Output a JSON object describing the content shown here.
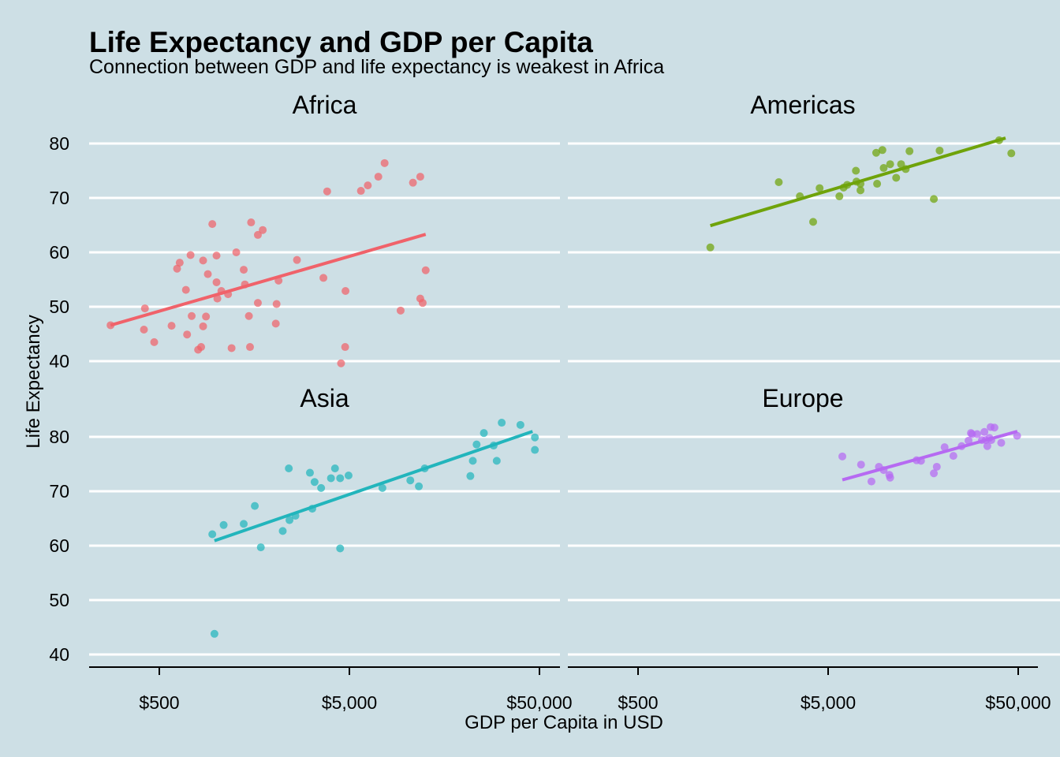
{
  "chart_data": {
    "type": "scatter",
    "title": "Life Expectancy and GDP per Capita",
    "subtitle": "Connection between GDP and life expectancy is weakest in Africa",
    "xlabel": "GDP per Capita in USD",
    "ylabel": "Life Expectancy",
    "x_scale": "log10",
    "x_ticks": [
      500,
      5000,
      50000
    ],
    "x_tick_labels": [
      "$500",
      "$5,000",
      "$50,000"
    ],
    "y_ticks": [
      40,
      50,
      60,
      70,
      80
    ],
    "y_tick_labels": [
      "40",
      "50",
      "60",
      "70",
      "80"
    ],
    "xlim": [
      200,
      65000
    ],
    "ylim": [
      38,
      83
    ],
    "grid": "horizontal-major",
    "legend": "none",
    "facets": [
      {
        "name": "Africa",
        "color": "#f0626a",
        "trend": [
          [
            277,
            46.6
          ],
          [
            12600,
            63.3
          ]
        ],
        "points": [
          [
            277,
            46.6
          ],
          [
            420,
            49.7
          ],
          [
            415,
            45.8
          ],
          [
            470,
            43.5
          ],
          [
            580,
            46.5
          ],
          [
            620,
            57.0
          ],
          [
            640,
            58.1
          ],
          [
            690,
            53.1
          ],
          [
            700,
            44.9
          ],
          [
            730,
            59.5
          ],
          [
            740,
            48.3
          ],
          [
            800,
            42.1
          ],
          [
            830,
            42.6
          ],
          [
            850,
            46.4
          ],
          [
            850,
            58.5
          ],
          [
            880,
            48.2
          ],
          [
            900,
            56.0
          ],
          [
            950,
            65.2
          ],
          [
            1000,
            54.5
          ],
          [
            1000,
            59.4
          ],
          [
            1010,
            51.5
          ],
          [
            1060,
            52.9
          ],
          [
            1150,
            52.3
          ],
          [
            1200,
            42.4
          ],
          [
            1270,
            60.0
          ],
          [
            1390,
            56.8
          ],
          [
            1410,
            54.1
          ],
          [
            1480,
            48.3
          ],
          [
            1500,
            42.6
          ],
          [
            1520,
            65.5
          ],
          [
            1650,
            50.7
          ],
          [
            1650,
            63.2
          ],
          [
            1750,
            64.1
          ],
          [
            2050,
            46.9
          ],
          [
            2070,
            50.5
          ],
          [
            2120,
            54.8
          ],
          [
            2650,
            58.6
          ],
          [
            3650,
            55.3
          ],
          [
            3820,
            71.2
          ],
          [
            4520,
            39.6
          ],
          [
            4770,
            52.9
          ],
          [
            4750,
            42.6
          ],
          [
            5750,
            71.3
          ],
          [
            6250,
            72.3
          ],
          [
            7100,
            73.9
          ],
          [
            7660,
            76.4
          ],
          [
            9300,
            49.3
          ],
          [
            10800,
            72.8
          ],
          [
            11800,
            73.9
          ],
          [
            11800,
            51.5
          ],
          [
            12150,
            50.7
          ],
          [
            12600,
            56.7
          ]
        ]
      },
      {
        "name": "Americas",
        "color": "#6fa30a",
        "trend": [
          [
            1200,
            64.9
          ],
          [
            42900,
            81.0
          ]
        ],
        "points": [
          [
            1200,
            60.9
          ],
          [
            2750,
            72.9
          ],
          [
            3550,
            70.3
          ],
          [
            4170,
            65.6
          ],
          [
            4510,
            71.8
          ],
          [
            5730,
            70.3
          ],
          [
            6030,
            71.9
          ],
          [
            6300,
            72.4
          ],
          [
            7000,
            75.0
          ],
          [
            7050,
            73.0
          ],
          [
            7400,
            71.4
          ],
          [
            7400,
            72.6
          ],
          [
            8950,
            78.3
          ],
          [
            9050,
            72.6
          ],
          [
            9650,
            78.8
          ],
          [
            9800,
            75.5
          ],
          [
            10600,
            76.2
          ],
          [
            11400,
            73.7
          ],
          [
            12100,
            76.2
          ],
          [
            12800,
            75.3
          ],
          [
            13400,
            78.6
          ],
          [
            18000,
            69.8
          ],
          [
            19300,
            78.7
          ],
          [
            39700,
            80.6
          ],
          [
            46000,
            78.2
          ]
        ]
      },
      {
        "name": "Asia",
        "color": "#22b5bc",
        "trend": [
          [
            975,
            60.9
          ],
          [
            46000,
            81.0
          ]
        ],
        "points": [
          [
            950,
            62.1
          ],
          [
            975,
            43.8
          ],
          [
            1090,
            63.8
          ],
          [
            1390,
            64.0
          ],
          [
            1590,
            67.3
          ],
          [
            1710,
            59.7
          ],
          [
            2230,
            62.7
          ],
          [
            2420,
            64.7
          ],
          [
            2400,
            74.2
          ],
          [
            2600,
            65.5
          ],
          [
            3100,
            73.4
          ],
          [
            3190,
            66.8
          ],
          [
            3280,
            71.7
          ],
          [
            3550,
            70.6
          ],
          [
            4000,
            72.4
          ],
          [
            4200,
            74.2
          ],
          [
            4470,
            72.4
          ],
          [
            4470,
            59.5
          ],
          [
            4950,
            72.9
          ],
          [
            7460,
            70.6
          ],
          [
            10460,
            72.0
          ],
          [
            11600,
            70.9
          ],
          [
            12450,
            74.2
          ],
          [
            21650,
            72.8
          ],
          [
            22300,
            75.6
          ],
          [
            23350,
            78.6
          ],
          [
            25500,
            80.7
          ],
          [
            28700,
            78.4
          ],
          [
            29800,
            75.6
          ],
          [
            31650,
            82.6
          ],
          [
            39700,
            82.2
          ],
          [
            47300,
            79.9
          ],
          [
            47300,
            77.6
          ]
        ]
      },
      {
        "name": "Europe",
        "color": "#b66af2",
        "trend": [
          [
            5940,
            72.1
          ],
          [
            49500,
            81.0
          ]
        ],
        "points": [
          [
            5940,
            76.4
          ],
          [
            7450,
            74.9
          ],
          [
            8450,
            71.8
          ],
          [
            9250,
            74.5
          ],
          [
            9800,
            73.9
          ],
          [
            10500,
            73.0
          ],
          [
            10600,
            72.5
          ],
          [
            14600,
            75.7
          ],
          [
            15400,
            75.6
          ],
          [
            18000,
            73.3
          ],
          [
            18650,
            74.5
          ],
          [
            20500,
            78.1
          ],
          [
            22800,
            76.5
          ],
          [
            25200,
            78.3
          ],
          [
            27400,
            79.3
          ],
          [
            28200,
            80.7
          ],
          [
            28600,
            80.5
          ],
          [
            30400,
            80.5
          ],
          [
            32200,
            79.4
          ],
          [
            33200,
            80.9
          ],
          [
            33700,
            79.4
          ],
          [
            34400,
            78.3
          ],
          [
            35300,
            79.8
          ],
          [
            35800,
            81.8
          ],
          [
            36100,
            79.4
          ],
          [
            37500,
            81.7
          ],
          [
            40700,
            78.9
          ],
          [
            49350,
            80.2
          ]
        ]
      }
    ]
  }
}
